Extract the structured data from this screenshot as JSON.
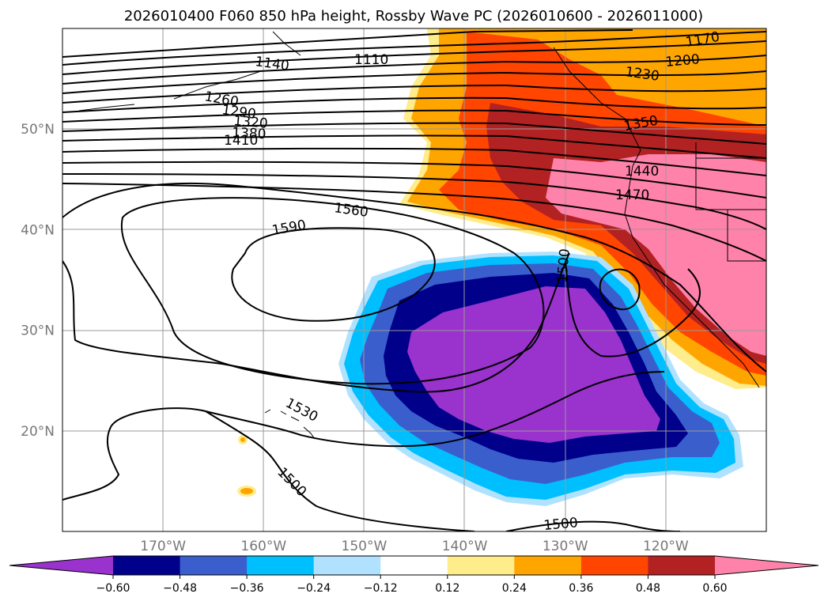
{
  "title": "2026010400 F060 850 hPa height, Rossby Wave PC (2026010600 - 2026011000)",
  "map": {
    "lon_range": [
      -180,
      -110
    ],
    "lat_range": [
      10,
      60
    ],
    "lon_ticks": [
      {
        "value": -170,
        "label": "170°W"
      },
      {
        "value": -160,
        "label": "160°W"
      },
      {
        "value": -150,
        "label": "150°W"
      },
      {
        "value": -140,
        "label": "140°W"
      },
      {
        "value": -130,
        "label": "130°W"
      },
      {
        "value": -120,
        "label": "120°W"
      }
    ],
    "lat_ticks": [
      {
        "value": 50,
        "label": "50°N"
      },
      {
        "value": 40,
        "label": "40°N"
      },
      {
        "value": 30,
        "label": "30°N"
      },
      {
        "value": 20,
        "label": "20°N"
      }
    ],
    "grid": true,
    "contour_labels": [
      "1170",
      "1110",
      "1200",
      "1140",
      "1230",
      "1260",
      "1290",
      "1320",
      "1350",
      "1380",
      "1410",
      "1440",
      "1470",
      "1560",
      "1590",
      "1500",
      "1530",
      "1500",
      "1500"
    ]
  },
  "colorbar": {
    "colors": [
      "#9a32cd",
      "#00008b",
      "#3a5fcd",
      "#00bfff",
      "#b0e2ff",
      "#ffffff",
      "#ffec8b",
      "#ffa500",
      "#ff4500",
      "#b22222",
      "#ff82ab"
    ],
    "tick_labels": [
      "−0.60",
      "−0.48",
      "−0.36",
      "−0.24",
      "−0.12",
      "0.12",
      "0.24",
      "0.36",
      "0.48",
      "0.60"
    ],
    "extend": "both"
  }
}
